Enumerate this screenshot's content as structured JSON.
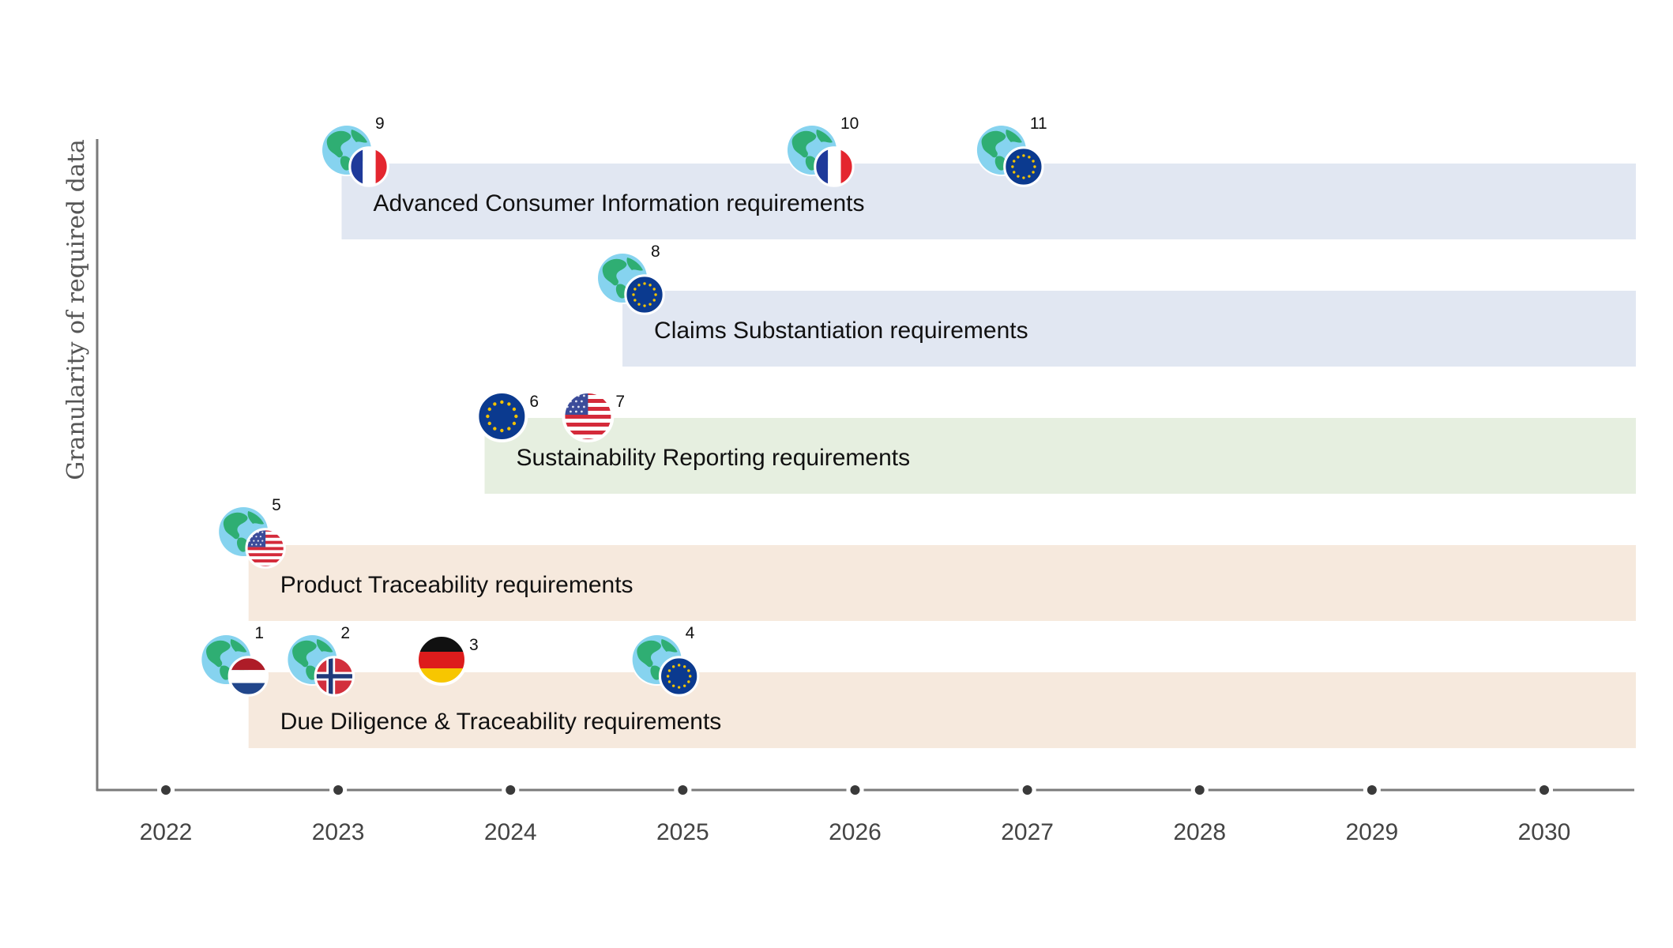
{
  "y_axis_label": "Granularity of required data",
  "years": [
    "2022",
    "2023",
    "2024",
    "2025",
    "2026",
    "2027",
    "2028",
    "2029",
    "2030"
  ],
  "colors": {
    "axis": "#7a7a7a",
    "blue_band": "#e1e7f2",
    "green_band": "#e6efe0",
    "peach_band": "#f6e9dd",
    "eu_blue": "#0b3a8f",
    "eu_star": "#f2c200",
    "globe_ocean": "#7fd0ec",
    "globe_land": "#2fae73"
  },
  "bands": [
    {
      "id": "consumer",
      "label": "Advanced Consumer Information requirements",
      "start_year": 2023.02,
      "color": "blue"
    },
    {
      "id": "claims",
      "label": "Claims Substantiation requirements",
      "start_year": 2024.65,
      "color": "blue"
    },
    {
      "id": "reporting",
      "label": "Sustainability Reporting requirements",
      "start_year": 2023.85,
      "color": "green"
    },
    {
      "id": "product",
      "label": "Product Traceability requirements",
      "start_year": 2022.48,
      "color": "peach"
    },
    {
      "id": "duediligence",
      "label": "Due Diligence & Traceability requirements",
      "start_year": 2022.48,
      "color": "peach"
    }
  ],
  "markers": [
    {
      "num": "9",
      "band": "consumer",
      "year": 2023.05,
      "globe": true,
      "flag": "france"
    },
    {
      "num": "10",
      "band": "consumer",
      "year": 2025.75,
      "globe": true,
      "flag": "france"
    },
    {
      "num": "11",
      "band": "consumer",
      "year": 2026.85,
      "globe": true,
      "flag": "eu"
    },
    {
      "num": "8",
      "band": "claims",
      "year": 2024.65,
      "globe": true,
      "flag": "eu"
    },
    {
      "num": "6",
      "band": "reporting",
      "year": 2023.95,
      "globe": false,
      "flag": "eu"
    },
    {
      "num": "7",
      "band": "reporting",
      "year": 2024.45,
      "globe": false,
      "flag": "usa"
    },
    {
      "num": "5",
      "band": "product",
      "year": 2022.45,
      "globe": true,
      "flag": "usa"
    },
    {
      "num": "1",
      "band": "duediligence",
      "year": 2022.35,
      "globe": true,
      "flag": "netherlands"
    },
    {
      "num": "2",
      "band": "duediligence",
      "year": 2022.85,
      "globe": true,
      "flag": "norway"
    },
    {
      "num": "3",
      "band": "duediligence",
      "year": 2023.6,
      "globe": false,
      "flag": "germany"
    },
    {
      "num": "4",
      "band": "duediligence",
      "year": 2024.85,
      "globe": true,
      "flag": "eu"
    }
  ]
}
